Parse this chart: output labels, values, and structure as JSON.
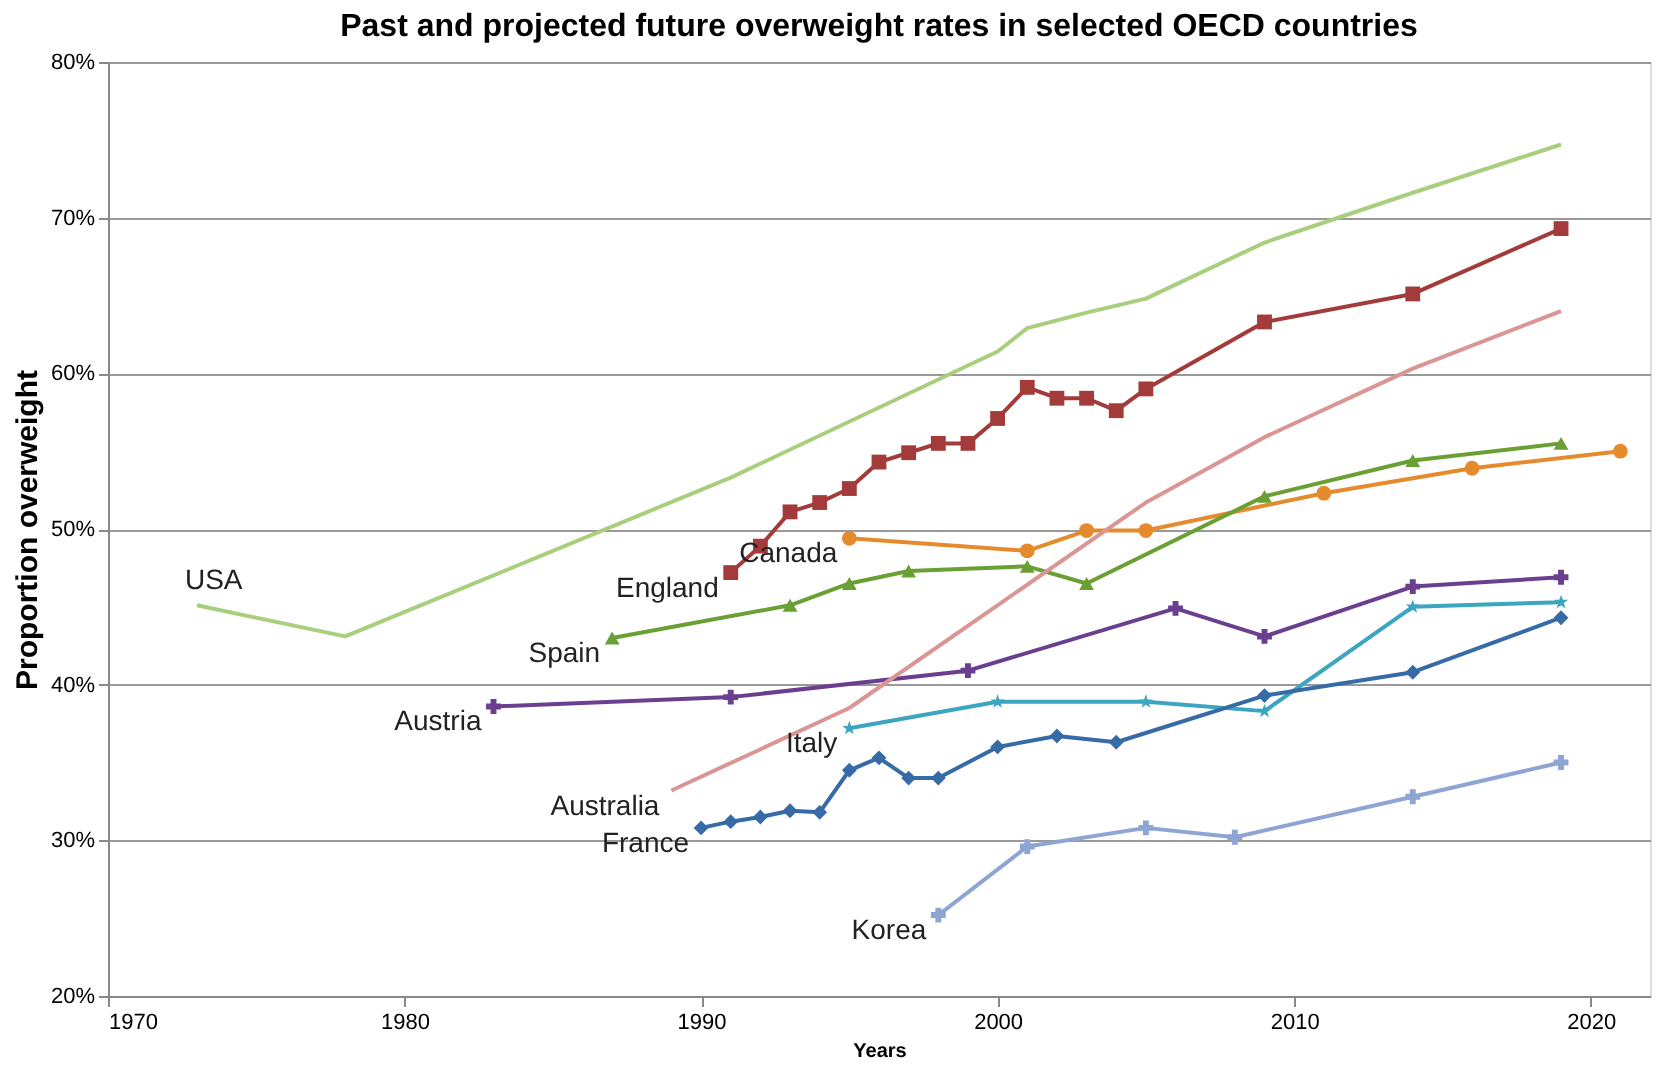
{
  "chart_data": {
    "type": "line",
    "title": "Past and projected future overweight rates in selected OECD countries",
    "xlabel": "Years",
    "ylabel": "Proportion overweight",
    "xlim": [
      1970,
      2022
    ],
    "xticks": [
      1970,
      1980,
      1990,
      2000,
      2010,
      2020
    ],
    "ylim": [
      20,
      80
    ],
    "yticks": [
      {
        "value": 20,
        "label": "20%"
      },
      {
        "value": 30,
        "label": "30%"
      },
      {
        "value": 40,
        "label": "40%"
      },
      {
        "value": 50,
        "label": "50%"
      },
      {
        "value": 60,
        "label": "60%"
      },
      {
        "value": 70,
        "label": "70%"
      },
      {
        "value": 80,
        "label": "80%"
      }
    ],
    "grid": "y",
    "legend": false,
    "series": [
      {
        "name": "USA",
        "color": "#a9cf7e",
        "marker": "none",
        "x": [
          1973,
          1978,
          1991,
          2000,
          2001,
          2003,
          2005,
          2009,
          2014,
          2019
        ],
        "values": [
          45.1,
          43.1,
          53.3,
          61.4,
          62.9,
          63.9,
          64.8,
          68.4,
          71.6,
          74.7
        ]
      },
      {
        "name": "England",
        "color": "#a33b3b",
        "marker": "square",
        "x": [
          1991,
          1992,
          1993,
          1994,
          1995,
          1996,
          1997,
          1998,
          1999,
          2000,
          2001,
          2002,
          2003,
          2004,
          2005,
          2009,
          2014,
          2019
        ],
        "values": [
          47.2,
          48.9,
          51.1,
          51.7,
          52.6,
          54.3,
          54.9,
          55.5,
          55.5,
          57.1,
          59.1,
          58.4,
          58.4,
          57.6,
          59.0,
          63.3,
          65.1,
          69.3
        ]
      },
      {
        "name": "Canada",
        "color": "#e68a2e",
        "marker": "circle",
        "x": [
          1995,
          2001,
          2003,
          2005,
          2011,
          2016,
          2021
        ],
        "values": [
          49.4,
          48.6,
          49.9,
          49.9,
          52.3,
          53.9,
          55.0
        ]
      },
      {
        "name": "Spain",
        "color": "#6a9f34",
        "marker": "triangle",
        "x": [
          1987,
          1993,
          1995,
          1997,
          2001,
          2003,
          2009,
          2014,
          2019
        ],
        "values": [
          43.0,
          45.1,
          46.5,
          47.3,
          47.6,
          46.5,
          52.1,
          54.4,
          55.5
        ]
      },
      {
        "name": "Austria",
        "color": "#6b3f8f",
        "marker": "cross",
        "x": [
          1983,
          1991,
          1999,
          2006,
          2009,
          2014,
          2019
        ],
        "values": [
          38.6,
          39.2,
          40.9,
          44.9,
          43.1,
          46.3,
          46.9
        ]
      },
      {
        "name": "Australia",
        "color": "#d99694",
        "marker": "none",
        "x": [
          1989,
          1995,
          2005,
          2009,
          2014,
          2019
        ],
        "values": [
          33.2,
          38.5,
          51.7,
          55.9,
          60.3,
          64.0
        ]
      },
      {
        "name": "Italy",
        "color": "#3ca5c0",
        "marker": "star",
        "x": [
          1995,
          2000,
          2005,
          2009,
          2014,
          2019
        ],
        "values": [
          37.2,
          38.9,
          38.9,
          38.3,
          45.0,
          45.3
        ]
      },
      {
        "name": "France",
        "color": "#376ba6",
        "marker": "diamond",
        "x": [
          1990,
          1991,
          1992,
          1993,
          1994,
          1995,
          1996,
          1997,
          1998,
          2000,
          2002,
          2004,
          2009,
          2014,
          2019
        ],
        "values": [
          30.8,
          31.2,
          31.5,
          31.9,
          31.8,
          34.5,
          35.3,
          34.0,
          34.0,
          36.0,
          36.7,
          36.3,
          39.3,
          40.8,
          44.3
        ]
      },
      {
        "name": "Korea",
        "color": "#8ea5d4",
        "marker": "cross",
        "x": [
          1998,
          2001,
          2005,
          2008,
          2014,
          2019
        ],
        "values": [
          25.2,
          29.6,
          30.8,
          30.2,
          32.8,
          35.0
        ]
      }
    ]
  }
}
